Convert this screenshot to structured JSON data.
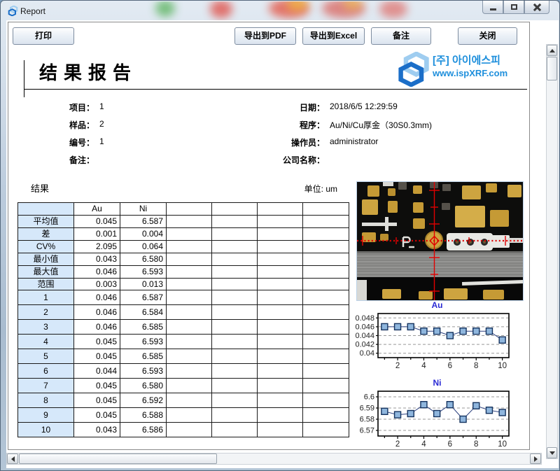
{
  "window": {
    "title": "Report"
  },
  "toolbar": {
    "print": "打印",
    "export_pdf": "导出到PDF",
    "export_excel": "导出到Excel",
    "remark": "备注",
    "close": "关闭"
  },
  "report": {
    "title": "结果报告",
    "logo": {
      "line1": "[주] 아이에스피",
      "line2": "www.ispXRF.com",
      "color": "#1e8fdc"
    },
    "info_left": [
      {
        "label": "项目：",
        "value": "1"
      },
      {
        "label": "样品：",
        "value": "2"
      },
      {
        "label": "编号：",
        "value": "1"
      },
      {
        "label": "备注：",
        "value": ""
      }
    ],
    "info_right": [
      {
        "label": "日期：",
        "value": "2018/6/5 12:29:59"
      },
      {
        "label": "程序：",
        "value": "Au/Ni/Cu厚金（30S0.3mm)"
      },
      {
        "label": "操作员：",
        "value": "administrator"
      },
      {
        "label": "公司名称：",
        "value": ""
      }
    ],
    "section_label": "结果",
    "unit_label": "单位: um",
    "stats_table": {
      "columns": [
        "",
        "Au",
        "Ni",
        "",
        "",
        "",
        ""
      ],
      "rows": [
        {
          "label": "平均值",
          "values": [
            "0.045",
            "6.587",
            "",
            "",
            "",
            ""
          ]
        },
        {
          "label": "差",
          "values": [
            "0.001",
            "0.004",
            "",
            "",
            "",
            ""
          ]
        },
        {
          "label": "CV%",
          "values": [
            "2.095",
            "0.064",
            "",
            "",
            "",
            ""
          ]
        },
        {
          "label": "最小值",
          "values": [
            "0.043",
            "6.580",
            "",
            "",
            "",
            ""
          ]
        },
        {
          "label": "最大值",
          "values": [
            "0.046",
            "6.593",
            "",
            "",
            "",
            ""
          ]
        },
        {
          "label": "范围",
          "values": [
            "0.003",
            "0.013",
            "",
            "",
            "",
            ""
          ]
        }
      ]
    },
    "data_table": {
      "rows": [
        {
          "label": "1",
          "values": [
            "0.046",
            "6.587",
            "",
            "",
            "",
            ""
          ]
        },
        {
          "label": "2",
          "values": [
            "0.046",
            "6.584",
            "",
            "",
            "",
            ""
          ]
        },
        {
          "label": "3",
          "values": [
            "0.046",
            "6.585",
            "",
            "",
            "",
            ""
          ]
        },
        {
          "label": "4",
          "values": [
            "0.045",
            "6.593",
            "",
            "",
            "",
            ""
          ]
        },
        {
          "label": "5",
          "values": [
            "0.045",
            "6.585",
            "",
            "",
            "",
            ""
          ]
        },
        {
          "label": "6",
          "values": [
            "0.044",
            "6.593",
            "",
            "",
            "",
            ""
          ]
        },
        {
          "label": "7",
          "values": [
            "0.045",
            "6.580",
            "",
            "",
            "",
            ""
          ]
        },
        {
          "label": "8",
          "values": [
            "0.045",
            "6.592",
            "",
            "",
            "",
            ""
          ]
        },
        {
          "label": "9",
          "values": [
            "0.045",
            "6.588",
            "",
            "",
            "",
            ""
          ]
        },
        {
          "label": "10",
          "values": [
            "0.043",
            "6.586",
            "",
            "",
            "",
            ""
          ]
        }
      ]
    }
  },
  "chart_data": [
    {
      "type": "line",
      "title": "Au",
      "x": [
        1,
        2,
        3,
        4,
        5,
        6,
        7,
        8,
        9,
        10
      ],
      "values": [
        0.046,
        0.046,
        0.046,
        0.045,
        0.045,
        0.044,
        0.045,
        0.045,
        0.045,
        0.043
      ],
      "ylim": [
        0.039,
        0.049
      ],
      "yticks": [
        0.048,
        0.046,
        0.044,
        0.042,
        0.04
      ],
      "ytick_labels": [
        "0.048",
        "0.046",
        "0.044",
        "0.042",
        "0.04"
      ],
      "xticks": [
        2,
        4,
        6,
        8,
        10
      ],
      "grid": true,
      "legend": "none",
      "marker": "square",
      "line_color": "#2a3f7e",
      "marker_fill": "#8fb6dd",
      "title_color": "#2a2ad4"
    },
    {
      "type": "line",
      "title": "Ni",
      "x": [
        1,
        2,
        3,
        4,
        5,
        6,
        7,
        8,
        9,
        10
      ],
      "values": [
        6.587,
        6.584,
        6.585,
        6.593,
        6.585,
        6.593,
        6.58,
        6.592,
        6.588,
        6.586
      ],
      "ylim": [
        6.565,
        6.605
      ],
      "yticks": [
        6.6,
        6.59,
        6.58,
        6.57
      ],
      "ytick_labels": [
        "6.6",
        "6.59",
        "6.58",
        "6.57"
      ],
      "xticks": [
        2,
        4,
        6,
        8,
        10
      ],
      "grid": true,
      "legend": "none",
      "marker": "square",
      "line_color": "#2a3f7e",
      "marker_fill": "#8fb6dd",
      "title_color": "#2a2ad4"
    }
  ]
}
